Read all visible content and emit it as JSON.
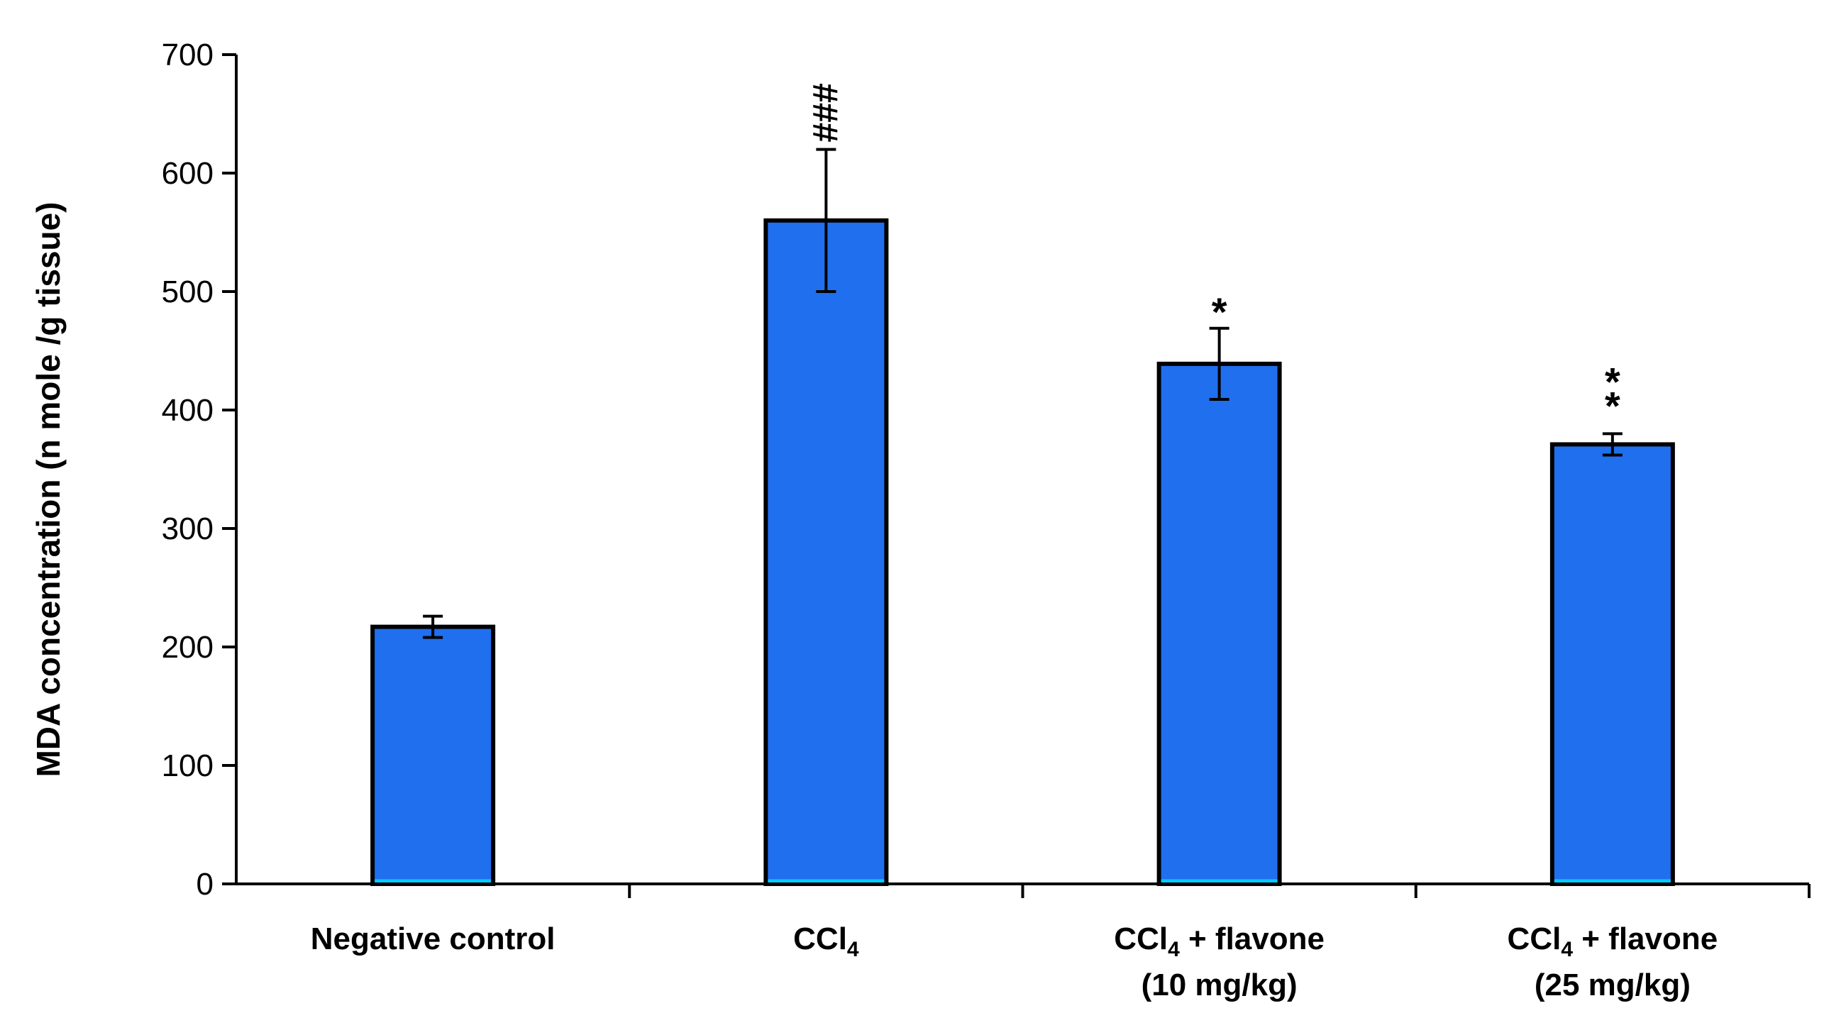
{
  "chart_data": {
    "type": "bar",
    "title": "",
    "xlabel": "",
    "ylabel": "MDA concentration (n mole /g tissue)",
    "ylim": [
      0,
      700
    ],
    "yticks": [
      "0",
      "100",
      "200",
      "300",
      "400",
      "500",
      "600",
      "700"
    ],
    "categories": [
      {
        "line1": "Negative control",
        "line2": ""
      },
      {
        "line1": "CCl4",
        "line2": ""
      },
      {
        "line1": "CCl4 + flavone",
        "line2": "(10 mg/kg)"
      },
      {
        "line1": "CCl4 + flavone",
        "line2": "(25 mg/kg)"
      }
    ],
    "values": [
      217,
      560,
      439,
      371
    ],
    "errors": [
      9,
      60,
      30,
      9
    ],
    "annotations": [
      "",
      "###",
      "*",
      "**"
    ],
    "bar_color": "#1f6fef",
    "bar_edge_color": "#000000",
    "bar_base_color": "#00ccff"
  }
}
